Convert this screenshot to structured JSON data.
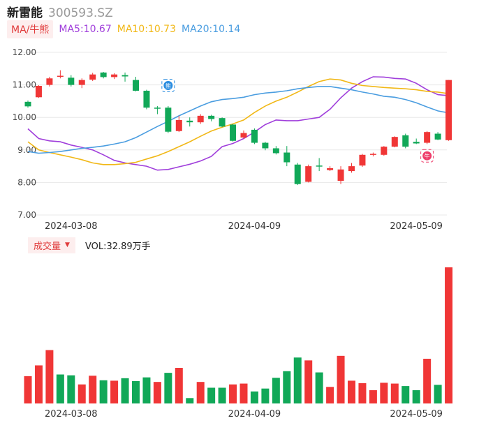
{
  "header": {
    "name": "新雷能",
    "code": "300593.SZ"
  },
  "ma_legend": {
    "tag": "MA/牛熊",
    "items": [
      {
        "label": "MA5:10.67",
        "color": "#a03fdb"
      },
      {
        "label": "MA10:10.73",
        "color": "#f1b817"
      },
      {
        "label": "MA20:10.14",
        "color": "#4a9de0"
      }
    ]
  },
  "volume_legend": {
    "tag": "成交量",
    "value": "VOL:32.89万手"
  },
  "colors": {
    "up": "#f03636",
    "down": "#11a858",
    "grid": "#e8e8e8"
  },
  "icons": {
    "bull_marker": "bull-icon",
    "bear_marker": "bear-icon"
  },
  "chart_data": [
    {
      "type": "candlestick",
      "ylim": [
        7.0,
        12.0
      ],
      "y_ticks": [
        "12.00",
        "11.00",
        "10.00",
        "9.00",
        "8.00",
        "7.00"
      ],
      "x_ticks": [
        {
          "index": 4,
          "label": "2024-03-08"
        },
        {
          "index": 21,
          "label": "2024-04-09"
        },
        {
          "index": 36,
          "label": "2024-05-09"
        }
      ],
      "candles": [
        [
          10.48,
          10.34,
          10.52,
          10.3
        ],
        [
          10.62,
          10.97,
          10.99,
          10.6
        ],
        [
          11.0,
          11.2,
          11.25,
          10.95
        ],
        [
          11.26,
          11.28,
          11.45,
          11.2
        ],
        [
          11.22,
          11.0,
          11.3,
          10.95
        ],
        [
          11.0,
          11.15,
          11.2,
          10.9
        ],
        [
          11.16,
          11.32,
          11.37,
          11.12
        ],
        [
          11.38,
          11.24,
          11.4,
          11.2
        ],
        [
          11.24,
          11.32,
          11.36,
          11.18
        ],
        [
          11.3,
          11.26,
          11.38,
          11.1
        ],
        [
          11.15,
          10.82,
          11.25,
          10.8
        ],
        [
          10.82,
          10.3,
          10.85,
          10.25
        ],
        [
          10.3,
          10.28,
          10.35,
          10.1
        ],
        [
          10.3,
          9.56,
          10.35,
          9.52
        ],
        [
          9.58,
          9.92,
          10.05,
          9.55
        ],
        [
          9.9,
          9.85,
          10.0,
          9.72
        ],
        [
          9.85,
          10.05,
          10.1,
          9.8
        ],
        [
          10.05,
          9.95,
          10.08,
          9.88
        ],
        [
          9.98,
          9.72,
          10.0,
          9.7
        ],
        [
          9.78,
          9.28,
          9.8,
          9.26
        ],
        [
          9.38,
          9.52,
          9.6,
          9.35
        ],
        [
          9.62,
          9.22,
          9.66,
          9.18
        ],
        [
          9.22,
          9.05,
          9.25,
          8.99
        ],
        [
          9.05,
          8.9,
          9.12,
          8.86
        ],
        [
          8.92,
          8.62,
          9.12,
          8.5
        ],
        [
          8.55,
          7.95,
          8.6,
          7.92
        ],
        [
          8.02,
          8.5,
          8.55,
          8.0
        ],
        [
          8.52,
          8.5,
          8.75,
          8.35
        ],
        [
          8.38,
          8.44,
          8.5,
          8.35
        ],
        [
          8.05,
          8.4,
          8.5,
          7.95
        ],
        [
          8.35,
          8.5,
          8.6,
          8.3
        ],
        [
          8.52,
          8.85,
          8.88,
          8.48
        ],
        [
          8.85,
          8.88,
          8.92,
          8.8
        ],
        [
          8.85,
          9.1,
          9.12,
          8.82
        ],
        [
          9.1,
          9.4,
          9.42,
          9.08
        ],
        [
          9.45,
          9.1,
          9.5,
          9.05
        ],
        [
          9.25,
          9.2,
          9.35,
          9.18
        ],
        [
          9.22,
          9.55,
          9.58,
          9.18
        ],
        [
          9.5,
          9.32,
          9.55,
          9.3
        ],
        [
          9.3,
          11.15,
          11.15,
          9.28
        ]
      ],
      "ma5": [
        9.65,
        9.35,
        9.28,
        9.25,
        9.15,
        9.08,
        9.0,
        8.85,
        8.68,
        8.6,
        8.55,
        8.5,
        8.38,
        8.4,
        8.48,
        8.56,
        8.66,
        8.8,
        9.1,
        9.2,
        9.35,
        9.55,
        9.78,
        9.92,
        9.9,
        9.9,
        9.95,
        10.0,
        10.25,
        10.6,
        10.9,
        11.1,
        11.25,
        11.24,
        11.2,
        11.18,
        11.05,
        10.85,
        10.7,
        10.67
      ],
      "ma10": [
        9.25,
        9.0,
        8.92,
        8.85,
        8.78,
        8.7,
        8.6,
        8.55,
        8.55,
        8.58,
        8.62,
        8.72,
        8.82,
        8.95,
        9.1,
        9.25,
        9.42,
        9.58,
        9.7,
        9.8,
        9.92,
        10.15,
        10.35,
        10.5,
        10.62,
        10.78,
        10.95,
        11.1,
        11.18,
        11.15,
        11.05,
        10.98,
        10.95,
        10.92,
        10.9,
        10.88,
        10.85,
        10.8,
        10.78,
        10.73
      ],
      "ma20": [
        8.95,
        8.9,
        8.92,
        8.95,
        9.0,
        9.05,
        9.08,
        9.12,
        9.18,
        9.25,
        9.38,
        9.55,
        9.72,
        9.88,
        10.05,
        10.2,
        10.35,
        10.48,
        10.55,
        10.58,
        10.62,
        10.7,
        10.75,
        10.78,
        10.82,
        10.88,
        10.92,
        10.95,
        10.95,
        10.9,
        10.85,
        10.78,
        10.72,
        10.65,
        10.62,
        10.55,
        10.45,
        10.32,
        10.2,
        10.14
      ]
    },
    {
      "type": "bar",
      "title": "成交量",
      "ylim": [
        0,
        32.89
      ],
      "values": [
        6.6,
        9.2,
        12.9,
        7.0,
        6.8,
        4.6,
        6.7,
        5.6,
        5.5,
        6.1,
        5.4,
        6.3,
        5.2,
        7.4,
        8.6,
        1.3,
        5.2,
        3.8,
        3.8,
        4.6,
        4.8,
        2.9,
        3.6,
        6.2,
        7.8,
        11.1,
        10.4,
        7.5,
        4.0,
        11.5,
        5.5,
        4.9,
        3.2,
        5.0,
        4.8,
        4.2,
        3.2,
        10.8,
        4.5,
        32.89
      ],
      "up": [
        true,
        true,
        true,
        false,
        false,
        true,
        true,
        false,
        true,
        false,
        false,
        false,
        true,
        false,
        true,
        false,
        true,
        false,
        false,
        true,
        true,
        false,
        false,
        false,
        false,
        false,
        true,
        false,
        true,
        true,
        true,
        true,
        true,
        true,
        true,
        false,
        false,
        true,
        false,
        true
      ]
    }
  ]
}
